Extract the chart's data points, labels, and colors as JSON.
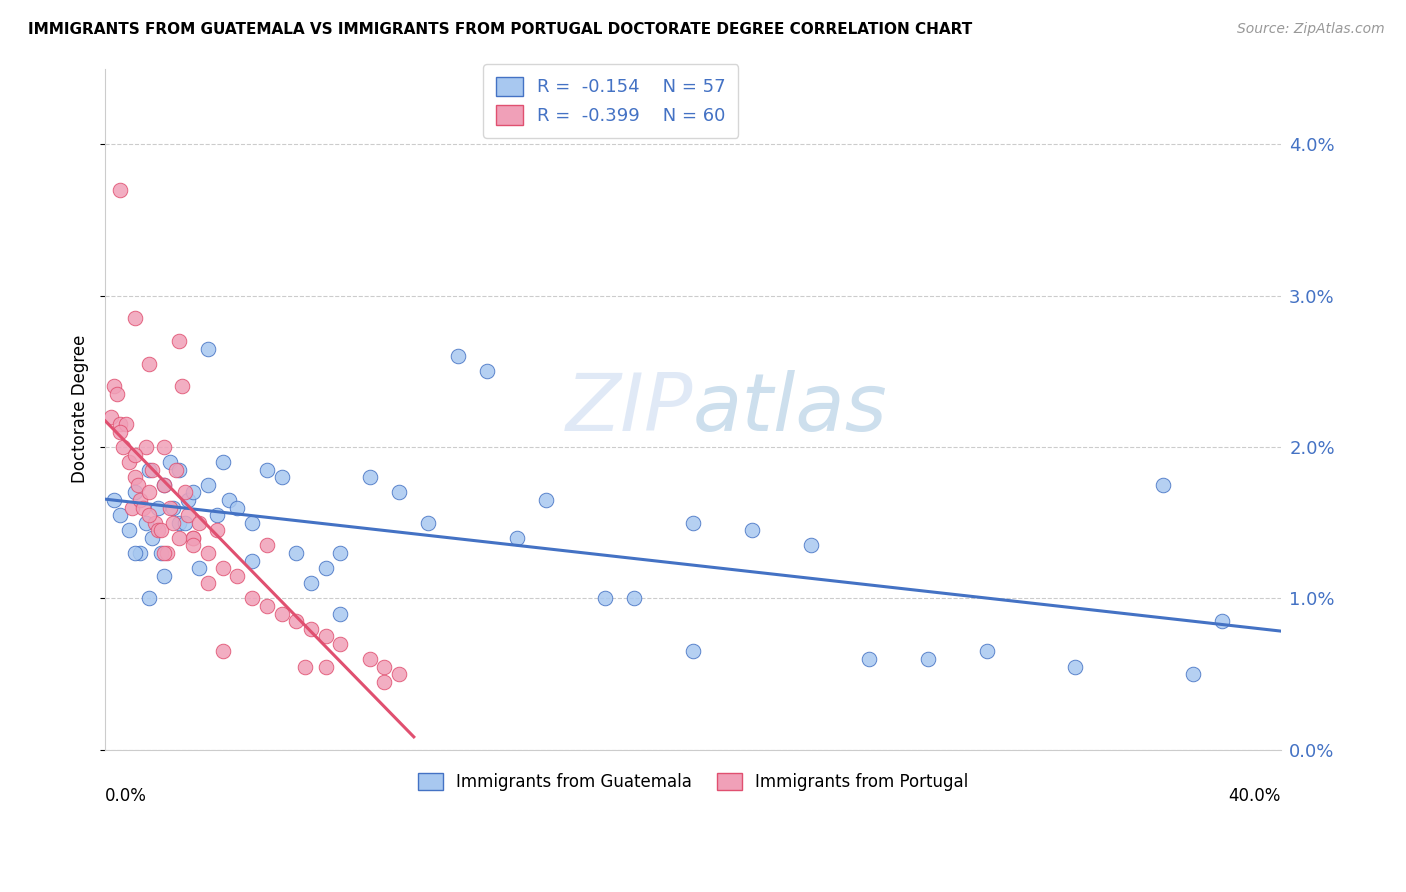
{
  "title": "IMMIGRANTS FROM GUATEMALA VS IMMIGRANTS FROM PORTUGAL DOCTORATE DEGREE CORRELATION CHART",
  "source": "Source: ZipAtlas.com",
  "ylabel": "Doctorate Degree",
  "ytick_vals": [
    0.0,
    1.0,
    2.0,
    3.0,
    4.0
  ],
  "xlim": [
    0.0,
    40.0
  ],
  "ylim": [
    0.0,
    4.5
  ],
  "color_blue": "#a8c8f0",
  "color_pink": "#f0a0b8",
  "line_blue": "#4472c4",
  "line_pink": "#e05070",
  "watermark": "ZIPatlas",
  "guatemala_x": [
    0.3,
    0.5,
    0.8,
    1.0,
    1.2,
    1.4,
    1.5,
    1.6,
    1.8,
    1.9,
    2.0,
    2.0,
    2.2,
    2.3,
    2.5,
    2.7,
    2.8,
    3.0,
    3.2,
    3.5,
    3.8,
    4.0,
    4.2,
    4.5,
    5.0,
    5.5,
    6.0,
    6.5,
    7.0,
    7.5,
    8.0,
    9.0,
    10.0,
    11.0,
    12.0,
    13.0,
    14.0,
    15.0,
    17.0,
    18.0,
    20.0,
    22.0,
    24.0,
    26.0,
    28.0,
    30.0,
    33.0,
    36.0,
    38.0,
    1.0,
    1.5,
    2.5,
    3.5,
    5.0,
    8.0,
    20.0,
    37.0
  ],
  "guatemala_y": [
    1.65,
    1.55,
    1.45,
    1.7,
    1.3,
    1.5,
    1.85,
    1.4,
    1.6,
    1.3,
    1.75,
    1.15,
    1.9,
    1.6,
    1.5,
    1.5,
    1.65,
    1.7,
    1.2,
    1.75,
    1.55,
    1.9,
    1.65,
    1.6,
    1.5,
    1.85,
    1.8,
    1.3,
    1.1,
    1.2,
    1.3,
    1.8,
    1.7,
    1.5,
    2.6,
    2.5,
    1.4,
    1.65,
    1.0,
    1.0,
    1.5,
    1.45,
    1.35,
    0.6,
    0.6,
    0.65,
    0.55,
    1.75,
    0.85,
    1.3,
    1.0,
    1.85,
    2.65,
    1.25,
    0.9,
    0.65,
    0.5
  ],
  "portugal_x": [
    0.2,
    0.3,
    0.4,
    0.5,
    0.5,
    0.6,
    0.7,
    0.8,
    0.9,
    1.0,
    1.0,
    1.1,
    1.2,
    1.3,
    1.4,
    1.5,
    1.5,
    1.6,
    1.7,
    1.8,
    1.9,
    2.0,
    2.0,
    2.1,
    2.2,
    2.3,
    2.4,
    2.5,
    2.6,
    2.7,
    2.8,
    3.0,
    3.0,
    3.2,
    3.5,
    3.8,
    4.0,
    4.5,
    5.0,
    5.5,
    6.0,
    6.5,
    7.0,
    7.5,
    8.0,
    9.0,
    9.5,
    10.0,
    0.5,
    1.0,
    1.5,
    2.0,
    2.5,
    3.0,
    3.5,
    4.0,
    5.5,
    6.8,
    7.5,
    9.5
  ],
  "portugal_y": [
    2.2,
    2.4,
    2.35,
    2.15,
    3.7,
    2.0,
    2.15,
    1.9,
    1.6,
    1.8,
    2.85,
    1.75,
    1.65,
    1.6,
    2.0,
    1.7,
    2.55,
    1.85,
    1.5,
    1.45,
    1.45,
    2.0,
    1.75,
    1.3,
    1.6,
    1.5,
    1.85,
    2.7,
    2.4,
    1.7,
    1.55,
    1.4,
    1.4,
    1.5,
    1.3,
    1.45,
    1.2,
    1.15,
    1.0,
    0.95,
    0.9,
    0.85,
    0.8,
    0.75,
    0.7,
    0.6,
    0.55,
    0.5,
    2.1,
    1.95,
    1.55,
    1.3,
    1.4,
    1.35,
    1.1,
    0.65,
    1.35,
    0.55,
    0.55,
    0.45
  ],
  "portugal_line_x_end": 10.5,
  "guatemala_line_x_start": 0.0,
  "guatemala_line_x_end": 40.0
}
